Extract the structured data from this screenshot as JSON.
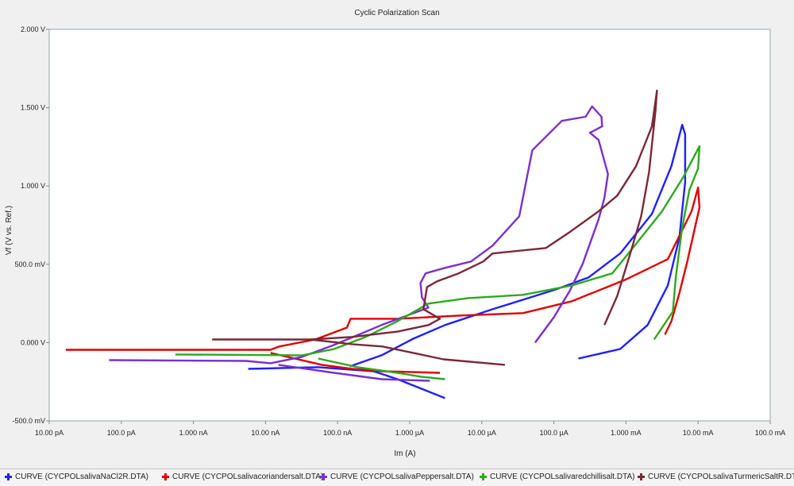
{
  "chart_data": {
    "type": "line",
    "title": "Cyclic Polarization Scan",
    "xlabel": "Im (A)",
    "ylabel": "Vf (V vs. Ref.)",
    "x_scale": "log",
    "x_values_are": "log10 of current in A",
    "xlim_log10": [
      -11,
      -1
    ],
    "ylim": [
      -0.5,
      2.0
    ],
    "xticks": [
      {
        "log10": -11,
        "label": "10.00 pA"
      },
      {
        "log10": -10,
        "label": "100.0 pA"
      },
      {
        "log10": -9,
        "label": "1.000 nA"
      },
      {
        "log10": -8,
        "label": "10.00 nA"
      },
      {
        "log10": -7,
        "label": "100.0 nA"
      },
      {
        "log10": -6,
        "label": "1.000 µA"
      },
      {
        "log10": -5,
        "label": "10.00 µA"
      },
      {
        "log10": -4,
        "label": "100.0 µA"
      },
      {
        "log10": -3,
        "label": "1.000 mA"
      },
      {
        "log10": -2,
        "label": "10.00 mA"
      },
      {
        "log10": -1,
        "label": "100.0 mA"
      }
    ],
    "yticks": [
      {
        "value": 2.0,
        "label": "2.000 V"
      },
      {
        "value": 1.5,
        "label": "1.500 V"
      },
      {
        "value": 1.0,
        "label": "1.000 V"
      },
      {
        "value": 0.5,
        "label": "500.0 mV"
      },
      {
        "value": 0.0,
        "label": "0.000 V"
      },
      {
        "value": -0.5,
        "label": "-500.0 mV"
      }
    ],
    "legend_position": "bottom",
    "series": [
      {
        "name": "CURVE (CYCPOLsalivaNaCl2R.DTA)",
        "color": "#1f1fff",
        "segments": [
          [
            [
              -8.24,
              -0.168
            ],
            [
              -7.27,
              -0.157
            ],
            [
              -6.5,
              -0.183
            ],
            [
              -6.17,
              -0.234
            ],
            [
              -5.84,
              -0.294
            ],
            [
              -5.51,
              -0.355
            ]
          ],
          [
            [
              -6.83,
              -0.152
            ],
            [
              -6.39,
              -0.081
            ],
            [
              -5.95,
              0.025
            ],
            [
              -5.51,
              0.112
            ],
            [
              -4.85,
              0.213
            ],
            [
              -3.97,
              0.34
            ],
            [
              -3.52,
              0.416
            ],
            [
              -3.08,
              0.569
            ],
            [
              -2.64,
              0.822
            ],
            [
              -2.37,
              1.127
            ],
            [
              -2.22,
              1.391
            ],
            [
              -2.18,
              1.33
            ],
            [
              -2.18,
              1.025
            ],
            [
              -2.26,
              0.67
            ],
            [
              -2.42,
              0.365
            ],
            [
              -2.7,
              0.112
            ],
            [
              -3.08,
              -0.041
            ],
            [
              -3.66,
              -0.102
            ]
          ]
        ]
      },
      {
        "name": "CURVE (CYCPOLsalivacoriandersalt.DTA)",
        "color": "#e00000",
        "segments": [
          [
            [
              -10.77,
              -0.046
            ],
            [
              -9.2,
              -0.046
            ],
            [
              -7.93,
              -0.046
            ],
            [
              -7.81,
              -0.025
            ],
            [
              -7.31,
              0.02
            ],
            [
              -6.87,
              0.096
            ],
            [
              -6.82,
              0.152
            ],
            [
              -6.17,
              0.152
            ],
            [
              -5.29,
              0.173
            ],
            [
              -4.43,
              0.188
            ],
            [
              -3.75,
              0.264
            ],
            [
              -3.01,
              0.401
            ],
            [
              -2.42,
              0.533
            ],
            [
              -2.09,
              0.838
            ],
            [
              -2.0,
              0.99
            ],
            [
              -1.98,
              0.863
            ],
            [
              -2.15,
              0.518
            ],
            [
              -2.26,
              0.315
            ],
            [
              -2.37,
              0.137
            ],
            [
              -2.46,
              0.051
            ]
          ],
          [
            [
              -7.93,
              -0.066
            ],
            [
              -7.22,
              -0.142
            ],
            [
              -6.8,
              -0.168
            ],
            [
              -6.38,
              -0.183
            ],
            [
              -5.58,
              -0.193
            ]
          ]
        ]
      },
      {
        "name": "CURVE (CYCPOLsalivaPeppersalt.DTA)",
        "color": "#7a2fd0",
        "segments": [
          [
            [
              -10.17,
              -0.112
            ],
            [
              -8.27,
              -0.117
            ],
            [
              -7.93,
              -0.132
            ],
            [
              -7.49,
              -0.091
            ],
            [
              -7.05,
              -0.015
            ],
            [
              -6.39,
              0.112
            ],
            [
              -5.74,
              0.223
            ],
            [
              -5.83,
              0.289
            ],
            [
              -5.85,
              0.381
            ],
            [
              -5.78,
              0.442
            ],
            [
              -5.51,
              0.477
            ],
            [
              -5.15,
              0.518
            ],
            [
              -4.85,
              0.619
            ],
            [
              -4.48,
              0.807
            ],
            [
              -4.3,
              1.228
            ],
            [
              -3.89,
              1.416
            ],
            [
              -3.56,
              1.442
            ],
            [
              -3.47,
              1.508
            ],
            [
              -3.34,
              1.442
            ],
            [
              -3.33,
              1.381
            ],
            [
              -3.5,
              1.34
            ],
            [
              -3.38,
              1.294
            ],
            [
              -3.25,
              1.076
            ],
            [
              -3.3,
              0.924
            ],
            [
              -3.38,
              0.787
            ],
            [
              -3.6,
              0.503
            ],
            [
              -3.78,
              0.33
            ],
            [
              -4.0,
              0.162
            ],
            [
              -4.26,
              0.0
            ]
          ],
          [
            [
              -7.82,
              -0.142
            ],
            [
              -7.05,
              -0.193
            ],
            [
              -6.39,
              -0.234
            ],
            [
              -5.72,
              -0.244
            ]
          ]
        ]
      },
      {
        "name": "CURVE (CYCPOLsalivaredchillisalt.DTA)",
        "color": "#2fa81f",
        "segments": [
          [
            [
              -9.25,
              -0.076
            ],
            [
              -7.49,
              -0.081
            ],
            [
              -7.05,
              -0.041
            ],
            [
              -6.61,
              0.036
            ],
            [
              -6.17,
              0.137
            ],
            [
              -5.74,
              0.249
            ],
            [
              -5.19,
              0.284
            ],
            [
              -4.43,
              0.305
            ],
            [
              -3.75,
              0.365
            ],
            [
              -3.19,
              0.442
            ],
            [
              -2.94,
              0.584
            ],
            [
              -2.5,
              0.838
            ],
            [
              -2.2,
              1.061
            ],
            [
              -1.98,
              1.254
            ],
            [
              -2.0,
              1.112
            ],
            [
              -2.12,
              0.975
            ],
            [
              -2.22,
              0.736
            ],
            [
              -2.31,
              0.416
            ],
            [
              -2.35,
              0.198
            ],
            [
              -2.61,
              0.02
            ]
          ],
          [
            [
              -7.27,
              -0.102
            ],
            [
              -6.72,
              -0.157
            ],
            [
              -6.17,
              -0.193
            ],
            [
              -5.84,
              -0.218
            ],
            [
              -5.51,
              -0.234
            ]
          ]
        ]
      },
      {
        "name": "CURVE (CYCPOLsalivaTurmericSaltR.DTA)",
        "color": "#7a2838",
        "segments": [
          [
            [
              -8.74,
              0.02
            ],
            [
              -7.38,
              0.02
            ],
            [
              -6.8,
              0.036
            ],
            [
              -6.16,
              0.071
            ],
            [
              -5.74,
              0.112
            ],
            [
              -5.58,
              0.152
            ],
            [
              -5.81,
              0.213
            ],
            [
              -5.76,
              0.355
            ],
            [
              -5.62,
              0.391
            ],
            [
              -5.32,
              0.442
            ],
            [
              -4.98,
              0.518
            ],
            [
              -4.85,
              0.569
            ],
            [
              -4.11,
              0.604
            ],
            [
              -3.78,
              0.706
            ],
            [
              -3.38,
              0.838
            ],
            [
              -3.12,
              0.939
            ],
            [
              -2.86,
              1.127
            ],
            [
              -2.64,
              1.381
            ],
            [
              -2.57,
              1.609
            ],
            [
              -2.59,
              1.482
            ],
            [
              -2.68,
              1.091
            ],
            [
              -2.79,
              0.807
            ],
            [
              -2.94,
              0.569
            ],
            [
              -3.12,
              0.299
            ],
            [
              -3.3,
              0.112
            ]
          ],
          [
            [
              -7.38,
              0.02
            ],
            [
              -6.8,
              -0.01
            ],
            [
              -6.38,
              -0.025
            ],
            [
              -5.95,
              -0.066
            ],
            [
              -5.53,
              -0.107
            ],
            [
              -4.68,
              -0.142
            ]
          ]
        ]
      }
    ]
  }
}
